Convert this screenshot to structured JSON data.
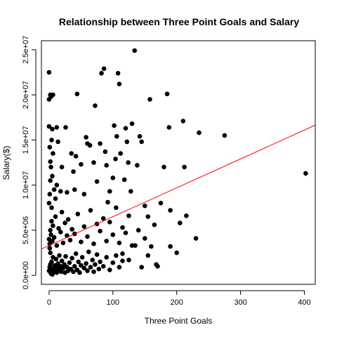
{
  "chart_data": {
    "type": "scatter",
    "title": "Relationship between Three Point Goals and Salary",
    "xlabel": "Three Point Goals",
    "ylabel": "Salary($)",
    "xlim": [
      -12,
      417
    ],
    "ylim": [
      -1000000,
      26000000
    ],
    "x_ticks": [
      0,
      100,
      200,
      300,
      400
    ],
    "x_tick_labels": [
      "0",
      "100",
      "200",
      "300",
      "400"
    ],
    "y_ticks": [
      0,
      5000000,
      10000000,
      15000000,
      20000000,
      25000000
    ],
    "y_tick_labels": [
      "0.0e+00",
      "5.0e+06",
      "1.0e+07",
      "1.5e+07",
      "2.0e+07",
      "2.5e+07"
    ],
    "grid": false,
    "point_color": "#000000",
    "fit_line": {
      "intercept": 3300000,
      "slope": 32000,
      "color": "#ff0000"
    },
    "points": [
      [
        0,
        500000
      ],
      [
        1,
        900000
      ],
      [
        2,
        1200000
      ],
      [
        3,
        300000
      ],
      [
        4,
        1500000
      ],
      [
        5,
        700000
      ],
      [
        6,
        2000000
      ],
      [
        2,
        2500000
      ],
      [
        1,
        3000000
      ],
      [
        3,
        200000
      ],
      [
        5,
        100000
      ],
      [
        7,
        800000
      ],
      [
        8,
        400000
      ],
      [
        9,
        1100000
      ],
      [
        10,
        600000
      ],
      [
        11,
        1800000
      ],
      [
        12,
        300000
      ],
      [
        13,
        900000
      ],
      [
        14,
        1300000
      ],
      [
        15,
        500000
      ],
      [
        16,
        2200000
      ],
      [
        17,
        700000
      ],
      [
        18,
        1000000
      ],
      [
        19,
        400000
      ],
      [
        20,
        1600000
      ],
      [
        22,
        800000
      ],
      [
        24,
        1200000
      ],
      [
        25,
        300000
      ],
      [
        26,
        2100000
      ],
      [
        28,
        900000
      ],
      [
        30,
        500000
      ],
      [
        32,
        1400000
      ],
      [
        34,
        700000
      ],
      [
        36,
        1900000
      ],
      [
        38,
        400000
      ],
      [
        40,
        1000000
      ],
      [
        42,
        2400000
      ],
      [
        44,
        600000
      ],
      [
        46,
        1500000
      ],
      [
        48,
        300000
      ],
      [
        50,
        1100000
      ],
      [
        52,
        2000000
      ],
      [
        55,
        800000
      ],
      [
        58,
        1300000
      ],
      [
        60,
        500000
      ],
      [
        62,
        2600000
      ],
      [
        65,
        900000
      ],
      [
        68,
        1700000
      ],
      [
        70,
        400000
      ],
      [
        72,
        1200000
      ],
      [
        75,
        2300000
      ],
      [
        78,
        700000
      ],
      [
        80,
        1500000
      ],
      [
        85,
        1000000
      ],
      [
        90,
        2000000
      ],
      [
        95,
        600000
      ],
      [
        100,
        1400000
      ],
      [
        105,
        2200000
      ],
      [
        110,
        900000
      ],
      [
        115,
        1600000
      ],
      [
        0,
        4000000
      ],
      [
        1,
        3500000
      ],
      [
        2,
        5000000
      ],
      [
        3,
        4500000
      ],
      [
        4,
        6000000
      ],
      [
        5,
        3800000
      ],
      [
        6,
        5500000
      ],
      [
        8,
        4200000
      ],
      [
        10,
        6500000
      ],
      [
        12,
        3300000
      ],
      [
        15,
        5200000
      ],
      [
        18,
        4800000
      ],
      [
        20,
        7000000
      ],
      [
        22,
        3600000
      ],
      [
        25,
        5800000
      ],
      [
        28,
        4400000
      ],
      [
        30,
        6200000
      ],
      [
        33,
        3900000
      ],
      [
        36,
        5100000
      ],
      [
        40,
        4600000
      ],
      [
        45,
        6800000
      ],
      [
        50,
        3700000
      ],
      [
        55,
        5400000
      ],
      [
        60,
        4300000
      ],
      [
        65,
        7200000
      ],
      [
        70,
        3500000
      ],
      [
        75,
        5700000
      ],
      [
        80,
        4900000
      ],
      [
        85,
        6300000
      ],
      [
        90,
        3800000
      ],
      [
        95,
        5900000
      ],
      [
        100,
        4500000
      ],
      [
        105,
        7500000
      ],
      [
        110,
        3600000
      ],
      [
        115,
        5300000
      ],
      [
        120,
        4700000
      ],
      [
        125,
        6600000
      ],
      [
        130,
        3300000
      ],
      [
        140,
        5000000
      ],
      [
        150,
        4100000
      ],
      [
        0,
        8000000
      ],
      [
        1,
        9000000
      ],
      [
        2,
        10500000
      ],
      [
        3,
        12000000
      ],
      [
        4,
        7500000
      ],
      [
        5,
        11000000
      ],
      [
        6,
        13500000
      ],
      [
        8,
        9500000
      ],
      [
        10,
        8500000
      ],
      [
        12,
        10000000
      ],
      [
        0,
        16500000
      ],
      [
        0,
        19500000
      ],
      [
        0,
        22500000
      ],
      [
        2,
        20000000
      ],
      [
        3,
        19800000
      ],
      [
        6,
        20000000
      ],
      [
        4,
        15000000
      ],
      [
        1,
        14200000
      ],
      [
        2,
        12600000
      ],
      [
        5,
        16200000
      ],
      [
        12,
        16400000
      ],
      [
        14,
        14800000
      ],
      [
        18,
        9300000
      ],
      [
        20,
        12000000
      ],
      [
        26,
        16400000
      ],
      [
        28,
        9200000
      ],
      [
        35,
        13500000
      ],
      [
        38,
        11500000
      ],
      [
        40,
        9500000
      ],
      [
        42,
        13200000
      ],
      [
        44,
        20100000
      ],
      [
        50,
        12300000
      ],
      [
        55,
        9000000
      ],
      [
        58,
        15300000
      ],
      [
        60,
        14600000
      ],
      [
        64,
        14400000
      ],
      [
        70,
        12500000
      ],
      [
        72,
        18800000
      ],
      [
        75,
        10400000
      ],
      [
        80,
        14600000
      ],
      [
        82,
        22400000
      ],
      [
        86,
        22900000
      ],
      [
        88,
        13700000
      ],
      [
        90,
        12200000
      ],
      [
        92,
        8100000
      ],
      [
        95,
        9300000
      ],
      [
        100,
        10800000
      ],
      [
        102,
        16600000
      ],
      [
        104,
        12900000
      ],
      [
        106,
        15400000
      ],
      [
        108,
        22400000
      ],
      [
        110,
        21200000
      ],
      [
        112,
        13500000
      ],
      [
        118,
        10600000
      ],
      [
        120,
        16300000
      ],
      [
        122,
        14800000
      ],
      [
        124,
        12500000
      ],
      [
        128,
        9300000
      ],
      [
        130,
        16800000
      ],
      [
        134,
        24900000
      ],
      [
        138,
        12200000
      ],
      [
        142,
        15400000
      ],
      [
        145,
        14800000
      ],
      [
        150,
        7700000
      ],
      [
        155,
        6500000
      ],
      [
        160,
        3200000
      ],
      [
        165,
        5600000
      ],
      [
        170,
        1000000
      ],
      [
        175,
        8000000
      ],
      [
        158,
        19500000
      ],
      [
        185,
        20100000
      ],
      [
        188,
        16400000
      ],
      [
        190,
        7200000
      ],
      [
        200,
        2500000
      ],
      [
        205,
        5800000
      ],
      [
        210,
        17100000
      ],
      [
        212,
        12000000
      ],
      [
        215,
        6600000
      ],
      [
        230,
        4100000
      ],
      [
        235,
        15800000
      ],
      [
        275,
        15500000
      ],
      [
        402,
        11300000
      ],
      [
        180,
        12000000
      ],
      [
        190,
        3200000
      ],
      [
        168,
        1200000
      ],
      [
        155,
        2200000
      ],
      [
        145,
        900000
      ],
      [
        135,
        3300000
      ],
      [
        125,
        1700000
      ],
      [
        115,
        2400000
      ]
    ]
  }
}
